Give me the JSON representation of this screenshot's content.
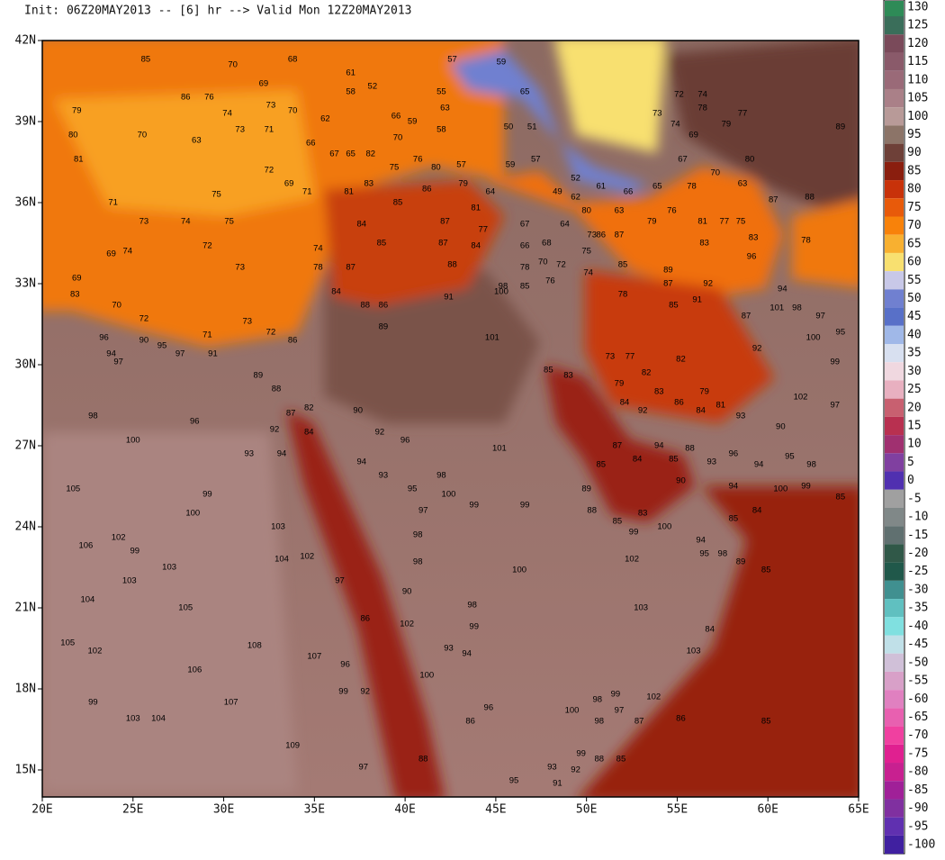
{
  "header": "Init: 06Z20MAY2013 -- [6] hr --> Valid Mon 12Z20MAY2013",
  "lat_labels": [
    {
      "value": 42,
      "label": "42N"
    },
    {
      "value": 39,
      "label": "39N"
    },
    {
      "value": 36,
      "label": "36N"
    },
    {
      "value": 33,
      "label": "33N"
    },
    {
      "value": 30,
      "label": "30N"
    },
    {
      "value": 27,
      "label": "27N"
    },
    {
      "value": 24,
      "label": "24N"
    },
    {
      "value": 21,
      "label": "21N"
    },
    {
      "value": 18,
      "label": "18N"
    },
    {
      "value": 15,
      "label": "15N"
    }
  ],
  "lon_labels": [
    {
      "value": 20,
      "label": "20E"
    },
    {
      "value": 25,
      "label": "25E"
    },
    {
      "value": 30,
      "label": "30E"
    },
    {
      "value": 35,
      "label": "35E"
    },
    {
      "value": 40,
      "label": "40E"
    },
    {
      "value": 45,
      "label": "45E"
    },
    {
      "value": 50,
      "label": "50E"
    },
    {
      "value": 55,
      "label": "55E"
    },
    {
      "value": 60,
      "label": "60E"
    },
    {
      "value": 65,
      "label": "65E"
    }
  ],
  "colorbar": {
    "labels": [
      130,
      125,
      120,
      115,
      110,
      105,
      100,
      95,
      90,
      85,
      80,
      75,
      70,
      65,
      60,
      55,
      50,
      45,
      40,
      35,
      30,
      25,
      20,
      15,
      10,
      5,
      0,
      -5,
      -10,
      -15,
      -20,
      -25,
      -30,
      -35,
      -40,
      -45,
      -50,
      -55,
      -60,
      -65,
      -70,
      -75,
      -80,
      -85,
      -90,
      -95,
      -100
    ],
    "colors": [
      "#2e8b57",
      "#3a6e5a",
      "#7a4a5a",
      "#8a5a6a",
      "#9a6a78",
      "#aa8088",
      "#b89a98",
      "#8c7468",
      "#6e4038",
      "#8a1e0e",
      "#c8320a",
      "#e85a0a",
      "#f8820a",
      "#f8b030",
      "#f8e070",
      "#c8c8e8",
      "#7080d0",
      "#5870c8",
      "#a0b8e8",
      "#d8e0f0",
      "#f0d8e0",
      "#e8b0c0",
      "#c86070",
      "#b83050",
      "#a03070",
      "#8040a0",
      "#5030b0",
      "#a0a0a0",
      "#808888",
      "#607070",
      "#305848",
      "#20584a",
      "#409090",
      "#60c0c0",
      "#80e0e0",
      "#c0e0e8",
      "#d0c0d8",
      "#d8a0c8",
      "#e080c0",
      "#e860b0",
      "#f040a0",
      "#e02090",
      "#c82090",
      "#a02098",
      "#8030a0",
      "#6030b0",
      "#4020a0"
    ]
  },
  "stations": [
    [
      25.7,
      41.3,
      85
    ],
    [
      30.5,
      41.1,
      70
    ],
    [
      33.8,
      41.3,
      68
    ],
    [
      32.2,
      40.4,
      69
    ],
    [
      27.9,
      39.9,
      86
    ],
    [
      29.2,
      39.9,
      76
    ],
    [
      30.2,
      39.3,
      74
    ],
    [
      33.8,
      39.4,
      70
    ],
    [
      32.6,
      39.6,
      73
    ],
    [
      35.6,
      39.1,
      62
    ],
    [
      37.0,
      40.1,
      58
    ],
    [
      38.2,
      40.3,
      52
    ],
    [
      37.0,
      40.8,
      61
    ],
    [
      39.5,
      39.2,
      66
    ],
    [
      40.4,
      39.0,
      59
    ],
    [
      39.6,
      38.4,
      70
    ],
    [
      42.0,
      40.1,
      55
    ],
    [
      42.2,
      39.5,
      63
    ],
    [
      42.6,
      41.3,
      57
    ],
    [
      45.3,
      41.2,
      59
    ],
    [
      46.6,
      40.1,
      65
    ],
    [
      42.0,
      38.7,
      58
    ],
    [
      45.7,
      38.8,
      50
    ],
    [
      47.0,
      38.8,
      51
    ],
    [
      21.9,
      39.4,
      79
    ],
    [
      21.7,
      38.5,
      80
    ],
    [
      22.0,
      37.6,
      81
    ],
    [
      25.5,
      38.5,
      70
    ],
    [
      28.5,
      38.3,
      63
    ],
    [
      30.9,
      38.7,
      73
    ],
    [
      32.5,
      38.7,
      71
    ],
    [
      34.8,
      38.2,
      66
    ],
    [
      36.1,
      37.8,
      67
    ],
    [
      37.0,
      37.8,
      65
    ],
    [
      38.1,
      37.8,
      82
    ],
    [
      39.4,
      37.3,
      75
    ],
    [
      40.7,
      37.6,
      76
    ],
    [
      41.7,
      37.3,
      80
    ],
    [
      43.1,
      37.4,
      57
    ],
    [
      45.8,
      37.4,
      59
    ],
    [
      47.2,
      37.6,
      57
    ],
    [
      32.5,
      37.2,
      72
    ],
    [
      33.6,
      36.7,
      69
    ],
    [
      34.6,
      36.4,
      71
    ],
    [
      29.6,
      36.3,
      75
    ],
    [
      23.9,
      36.0,
      71
    ],
    [
      25.6,
      35.3,
      73
    ],
    [
      27.9,
      35.3,
      74
    ],
    [
      30.3,
      35.3,
      75
    ],
    [
      24.7,
      34.2,
      74
    ],
    [
      29.1,
      34.4,
      72
    ],
    [
      30.9,
      33.6,
      73
    ],
    [
      23.8,
      34.1,
      69
    ],
    [
      21.9,
      33.2,
      69
    ],
    [
      21.8,
      32.6,
      83
    ],
    [
      24.1,
      32.2,
      70
    ],
    [
      25.6,
      31.7,
      72
    ],
    [
      29.1,
      31.1,
      71
    ],
    [
      31.3,
      31.6,
      73
    ],
    [
      32.6,
      31.2,
      72
    ],
    [
      29.4,
      30.4,
      91
    ],
    [
      27.6,
      30.4,
      97
    ],
    [
      26.6,
      30.7,
      95
    ],
    [
      25.6,
      30.9,
      90
    ],
    [
      23.8,
      30.4,
      94
    ],
    [
      24.2,
      30.1,
      97
    ],
    [
      23.4,
      31.0,
      96
    ],
    [
      33.8,
      30.9,
      86
    ],
    [
      31.9,
      29.6,
      89
    ],
    [
      32.9,
      29.1,
      88
    ],
    [
      33.7,
      28.2,
      87
    ],
    [
      34.7,
      28.4,
      82
    ],
    [
      34.7,
      27.5,
      84
    ],
    [
      32.8,
      27.6,
      92
    ],
    [
      31.4,
      26.7,
      93
    ],
    [
      33.2,
      26.7,
      94
    ],
    [
      28.4,
      27.9,
      96
    ],
    [
      22.8,
      28.1,
      98
    ],
    [
      25.0,
      27.2,
      100
    ],
    [
      21.7,
      25.4,
      105
    ],
    [
      29.1,
      25.2,
      99
    ],
    [
      28.3,
      24.5,
      100
    ],
    [
      22.4,
      23.3,
      106
    ],
    [
      24.2,
      23.6,
      102
    ],
    [
      25.1,
      23.1,
      99
    ],
    [
      24.8,
      22.0,
      103
    ],
    [
      27.0,
      22.5,
      103
    ],
    [
      22.5,
      21.3,
      104
    ],
    [
      27.9,
      21.0,
      105
    ],
    [
      21.4,
      19.7,
      105
    ],
    [
      22.9,
      19.4,
      102
    ],
    [
      28.4,
      18.7,
      106
    ],
    [
      31.7,
      19.6,
      108
    ],
    [
      35.0,
      19.2,
      107
    ],
    [
      30.4,
      17.5,
      107
    ],
    [
      22.8,
      17.5,
      99
    ],
    [
      25.0,
      16.9,
      103
    ],
    [
      26.4,
      16.9,
      104
    ],
    [
      33.0,
      24.0,
      103
    ],
    [
      33.2,
      22.8,
      104
    ],
    [
      34.6,
      22.9,
      102
    ],
    [
      36.4,
      22.0,
      97
    ],
    [
      36.7,
      18.9,
      96
    ],
    [
      36.6,
      17.9,
      99
    ],
    [
      37.8,
      17.9,
      92
    ],
    [
      33.8,
      15.9,
      109
    ],
    [
      37.7,
      15.1,
      97
    ],
    [
      41.0,
      15.4,
      88
    ],
    [
      37.8,
      20.6,
      86
    ],
    [
      40.1,
      21.6,
      90
    ],
    [
      40.1,
      20.4,
      102
    ],
    [
      41.2,
      18.5,
      100
    ],
    [
      42.4,
      19.5,
      93
    ],
    [
      43.4,
      19.3,
      94
    ],
    [
      43.7,
      21.1,
      98
    ],
    [
      43.8,
      20.3,
      99
    ],
    [
      43.6,
      16.8,
      86
    ],
    [
      44.6,
      17.3,
      96
    ],
    [
      46.0,
      14.6,
      95
    ],
    [
      40.7,
      22.7,
      98
    ],
    [
      40.7,
      23.7,
      98
    ],
    [
      41.0,
      24.6,
      97
    ],
    [
      40.4,
      25.4,
      95
    ],
    [
      38.8,
      25.9,
      93
    ],
    [
      37.6,
      26.4,
      94
    ],
    [
      37.4,
      28.3,
      90
    ],
    [
      38.6,
      27.5,
      92
    ],
    [
      40.0,
      27.2,
      96
    ],
    [
      42.0,
      25.9,
      98
    ],
    [
      42.4,
      25.2,
      100
    ],
    [
      43.8,
      24.8,
      99
    ],
    [
      46.6,
      24.8,
      99
    ],
    [
      46.3,
      22.4,
      100
    ],
    [
      45.2,
      26.9,
      101
    ],
    [
      44.8,
      31.0,
      101
    ],
    [
      45.3,
      32.7,
      100
    ],
    [
      42.4,
      32.5,
      91
    ],
    [
      38.8,
      31.4,
      89
    ],
    [
      37.8,
      32.2,
      88
    ],
    [
      38.8,
      32.2,
      86
    ],
    [
      37.0,
      33.6,
      87
    ],
    [
      35.2,
      33.6,
      78
    ],
    [
      36.2,
      32.7,
      84
    ],
    [
      35.2,
      34.3,
      74
    ],
    [
      38.7,
      34.5,
      85
    ],
    [
      37.6,
      35.2,
      84
    ],
    [
      39.6,
      36.0,
      85
    ],
    [
      41.2,
      36.5,
      86
    ],
    [
      43.2,
      36.7,
      79
    ],
    [
      36.9,
      36.4,
      81
    ],
    [
      38.0,
      36.7,
      83
    ],
    [
      42.2,
      35.3,
      87
    ],
    [
      43.9,
      35.8,
      81
    ],
    [
      44.3,
      35.0,
      77
    ],
    [
      43.9,
      34.4,
      84
    ],
    [
      42.1,
      34.5,
      87
    ],
    [
      42.6,
      33.7,
      88
    ],
    [
      44.7,
      36.4,
      64
    ],
    [
      46.6,
      35.2,
      67
    ],
    [
      46.6,
      34.4,
      66
    ],
    [
      47.8,
      34.5,
      68
    ],
    [
      46.6,
      33.6,
      78
    ],
    [
      47.6,
      33.8,
      70
    ],
    [
      48.6,
      33.7,
      72
    ],
    [
      48.0,
      33.1,
      76
    ],
    [
      48.8,
      35.2,
      64
    ],
    [
      50.0,
      34.2,
      75
    ],
    [
      50.3,
      34.8,
      73
    ],
    [
      50.1,
      33.4,
      74
    ],
    [
      50.8,
      34.8,
      86
    ],
    [
      51.8,
      34.8,
      87
    ],
    [
      49.4,
      36.2,
      62
    ],
    [
      48.4,
      36.4,
      49
    ],
    [
      49.4,
      36.9,
      52
    ],
    [
      50.8,
      36.6,
      61
    ],
    [
      52.3,
      36.4,
      66
    ],
    [
      53.9,
      36.6,
      65
    ],
    [
      51.8,
      35.7,
      63
    ],
    [
      50.0,
      35.7,
      80
    ],
    [
      53.6,
      35.3,
      79
    ],
    [
      54.7,
      35.7,
      76
    ],
    [
      55.8,
      36.6,
      78
    ],
    [
      56.4,
      35.3,
      81
    ],
    [
      57.6,
      35.3,
      77
    ],
    [
      58.5,
      35.3,
      75
    ],
    [
      56.5,
      34.5,
      83
    ],
    [
      54.5,
      33.5,
      89
    ],
    [
      52.0,
      33.7,
      85
    ],
    [
      52.0,
      32.6,
      78
    ],
    [
      54.5,
      33.0,
      87
    ],
    [
      56.7,
      33.0,
      92
    ],
    [
      54.8,
      32.2,
      85
    ],
    [
      56.1,
      32.4,
      91
    ],
    [
      58.8,
      31.8,
      87
    ],
    [
      59.4,
      30.6,
      92
    ],
    [
      55.2,
      30.2,
      82
    ],
    [
      53.3,
      29.7,
      82
    ],
    [
      52.4,
      30.3,
      77
    ],
    [
      51.3,
      30.3,
      73
    ],
    [
      51.8,
      29.3,
      79
    ],
    [
      54.0,
      29.0,
      83
    ],
    [
      55.1,
      28.6,
      86
    ],
    [
      56.5,
      29.0,
      79
    ],
    [
      57.4,
      28.5,
      81
    ],
    [
      56.3,
      28.3,
      84
    ],
    [
      53.1,
      28.3,
      92
    ],
    [
      52.1,
      28.6,
      84
    ],
    [
      58.5,
      28.1,
      93
    ],
    [
      60.7,
      27.7,
      90
    ],
    [
      61.8,
      28.8,
      102
    ],
    [
      63.7,
      28.5,
      97
    ],
    [
      63.7,
      30.1,
      99
    ],
    [
      62.5,
      31.0,
      100
    ],
    [
      64.0,
      31.2,
      95
    ],
    [
      62.9,
      31.8,
      97
    ],
    [
      61.6,
      32.1,
      98
    ],
    [
      60.5,
      32.1,
      101
    ],
    [
      60.8,
      32.8,
      94
    ],
    [
      59.1,
      34.0,
      96
    ],
    [
      59.2,
      34.7,
      83
    ],
    [
      60.3,
      36.1,
      87
    ],
    [
      62.3,
      36.2,
      88
    ],
    [
      62.1,
      34.6,
      78
    ],
    [
      64.0,
      38.8,
      89
    ],
    [
      58.6,
      39.3,
      77
    ],
    [
      57.7,
      38.9,
      79
    ],
    [
      56.4,
      39.5,
      78
    ],
    [
      55.1,
      40.0,
      72
    ],
    [
      56.4,
      40.0,
      74
    ],
    [
      54.9,
      38.9,
      74
    ],
    [
      55.9,
      38.5,
      69
    ],
    [
      53.9,
      39.3,
      73
    ],
    [
      55.3,
      37.6,
      67
    ],
    [
      57.1,
      37.1,
      70
    ],
    [
      59.0,
      37.6,
      80
    ],
    [
      58.6,
      36.7,
      63
    ],
    [
      51.7,
      27.0,
      87
    ],
    [
      54.0,
      27.0,
      94
    ],
    [
      55.7,
      26.9,
      88
    ],
    [
      52.8,
      26.5,
      84
    ],
    [
      54.8,
      26.5,
      85
    ],
    [
      50.8,
      26.3,
      85
    ],
    [
      50.0,
      25.4,
      89
    ],
    [
      50.3,
      24.6,
      88
    ],
    [
      51.7,
      24.2,
      85
    ],
    [
      53.1,
      24.5,
      83
    ],
    [
      52.6,
      23.8,
      99
    ],
    [
      54.3,
      24.0,
      100
    ],
    [
      55.2,
      25.7,
      90
    ],
    [
      56.9,
      26.4,
      93
    ],
    [
      58.1,
      26.7,
      96
    ],
    [
      59.5,
      26.3,
      94
    ],
    [
      61.2,
      26.6,
      95
    ],
    [
      62.4,
      26.3,
      98
    ],
    [
      58.1,
      25.5,
      94
    ],
    [
      60.7,
      25.4,
      100
    ],
    [
      62.1,
      25.5,
      99
    ],
    [
      64.0,
      25.1,
      85
    ],
    [
      59.4,
      24.6,
      84
    ],
    [
      58.1,
      24.3,
      85
    ],
    [
      56.3,
      23.5,
      94
    ],
    [
      56.5,
      23.0,
      95
    ],
    [
      57.5,
      23.0,
      98
    ],
    [
      58.5,
      22.7,
      89
    ],
    [
      59.9,
      22.4,
      85
    ],
    [
      52.5,
      22.8,
      102
    ],
    [
      53.0,
      21.0,
      103
    ],
    [
      55.9,
      19.4,
      103
    ],
    [
      56.8,
      20.2,
      84
    ],
    [
      59.9,
      16.8,
      85
    ],
    [
      53.7,
      17.7,
      102
    ],
    [
      55.2,
      16.9,
      86
    ],
    [
      52.9,
      16.8,
      87
    ],
    [
      51.6,
      17.8,
      99
    ],
    [
      51.8,
      17.2,
      97
    ],
    [
      50.6,
      17.6,
      98
    ],
    [
      50.7,
      16.8,
      98
    ],
    [
      49.2,
      17.2,
      100
    ],
    [
      49.7,
      15.6,
      99
    ],
    [
      48.1,
      15.1,
      93
    ],
    [
      49.4,
      15.0,
      92
    ],
    [
      50.7,
      15.4,
      88
    ],
    [
      51.9,
      15.4,
      85
    ],
    [
      48.4,
      14.5,
      91
    ],
    [
      49.0,
      29.6,
      83
    ],
    [
      47.9,
      29.8,
      85
    ],
    [
      46.6,
      32.9,
      85
    ],
    [
      45.4,
      32.9,
      98
    ]
  ]
}
